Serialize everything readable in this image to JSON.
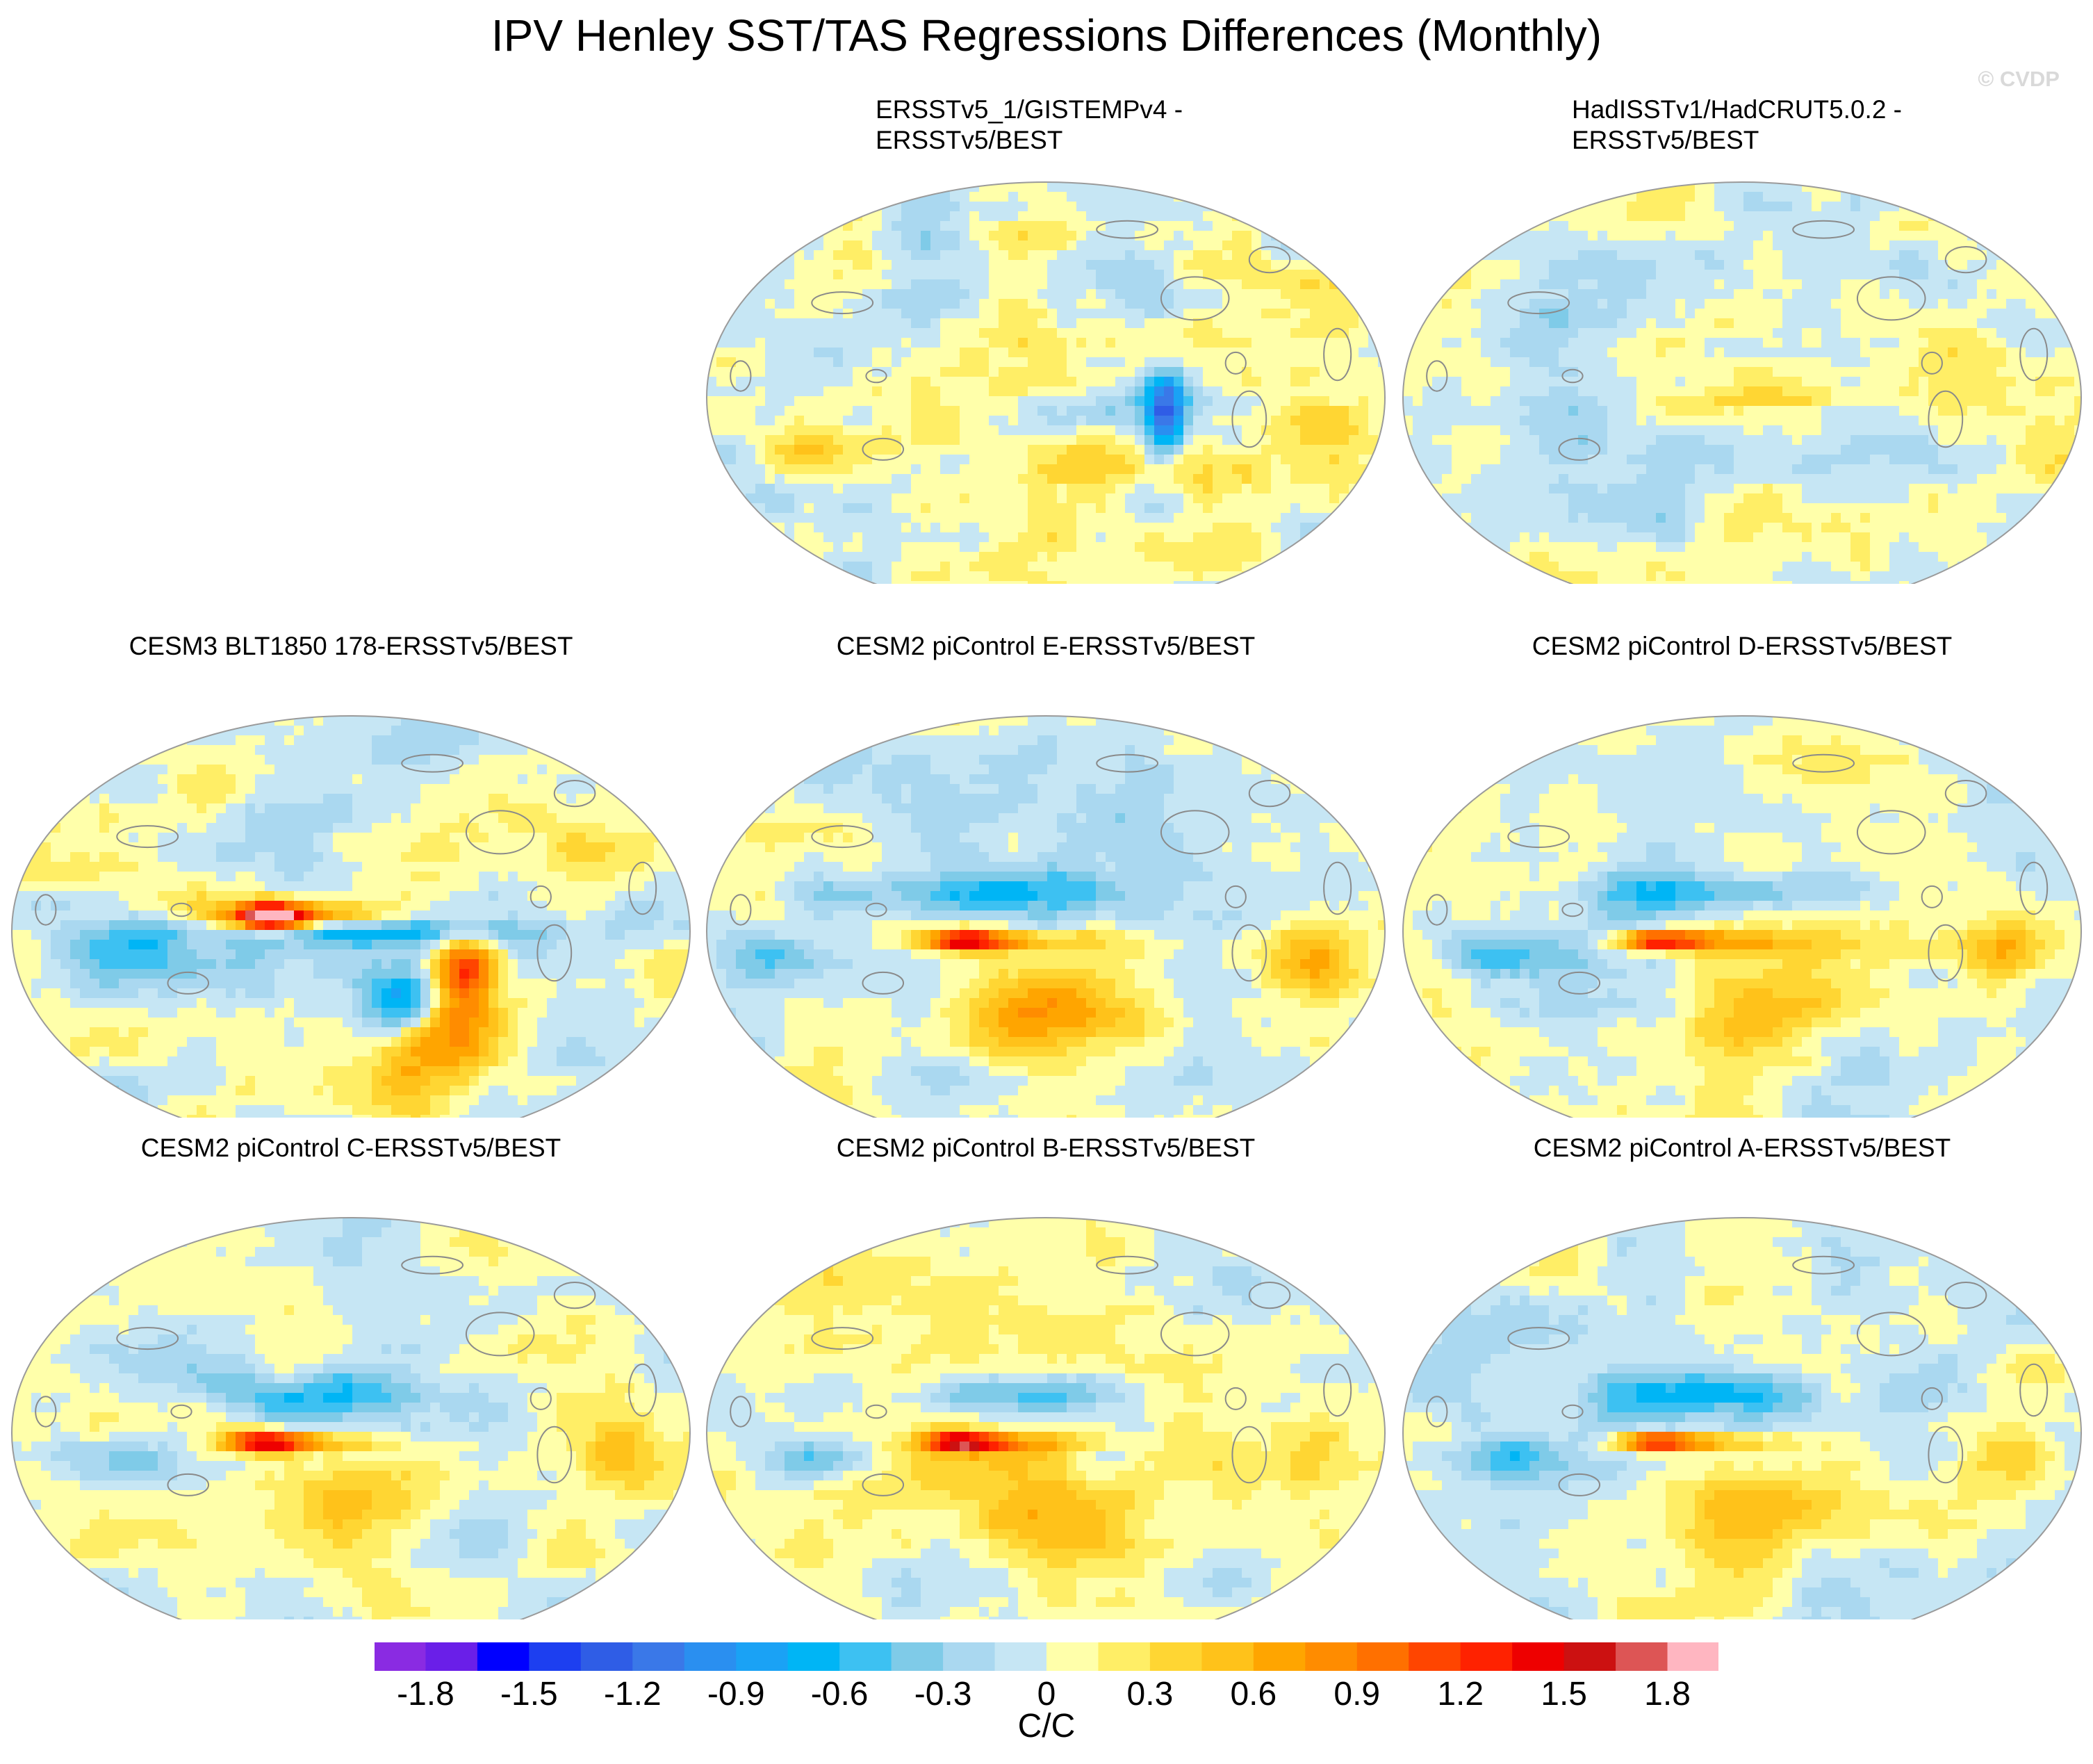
{
  "title": "IPV Henley SST/TAS Regressions Differences (Monthly)",
  "watermark": "© CVDP",
  "chart_data": {
    "type": "heatmap",
    "projection": "Robinson (global, Pacific-centered)",
    "colorbar": {
      "unit": "C/C",
      "tick_labels": [
        "-1.8",
        "-1.5",
        "-1.2",
        "-0.9",
        "-0.6",
        "-0.3",
        "0",
        "0.3",
        "0.6",
        "0.9",
        "1.2",
        "1.5",
        "1.8"
      ],
      "levels": [
        -1.8,
        -1.65,
        -1.5,
        -1.35,
        -1.2,
        -1.05,
        -0.9,
        -0.75,
        -0.6,
        -0.45,
        -0.3,
        -0.15,
        0,
        0.15,
        0.3,
        0.45,
        0.6,
        0.75,
        0.9,
        1.05,
        1.2,
        1.35,
        1.5,
        1.65,
        1.8
      ],
      "colors": [
        "#8a2be2",
        "#6a1fe8",
        "#0000ff",
        "#1d3ff0",
        "#2f5de6",
        "#3a78e8",
        "#2a8ff0",
        "#1aa2f5",
        "#00b5f5",
        "#3dc1f2",
        "#7fcbe8",
        "#aad8f0",
        "#c6e6f4",
        "#ffffaa",
        "#ffee66",
        "#ffd633",
        "#ffc21a",
        "#ffa500",
        "#ff8c00",
        "#ff7000",
        "#ff4500",
        "#ff2200",
        "#ee0000",
        "#cc1111",
        "#dd5555",
        "#ffb6c1"
      ]
    },
    "panels": [
      {
        "title_lines": [
          "ERSSTv5_1/GISTEMPv4 -",
          "ERSSTv5/BEST"
        ],
        "pattern": "obs1"
      },
      {
        "title_lines": [
          "HadISSTv1/HadCRUT5.0.2 -",
          "ERSSTv5/BEST"
        ],
        "pattern": "obs2"
      },
      {
        "title_lines": [
          "CESM3 BLT1850 178-ERSSTv5/BEST"
        ],
        "pattern": "cesm3"
      },
      {
        "title_lines": [
          "CESM2 piControl E-ERSSTv5/BEST"
        ],
        "pattern": "model"
      },
      {
        "title_lines": [
          "CESM2 piControl D-ERSSTv5/BEST"
        ],
        "pattern": "model"
      },
      {
        "title_lines": [
          "CESM2 piControl C-ERSSTv5/BEST"
        ],
        "pattern": "model"
      },
      {
        "title_lines": [
          "CESM2 piControl B-ERSSTv5/BEST"
        ],
        "pattern": "model"
      },
      {
        "title_lines": [
          "CESM2 piControl A-ERSSTv5/BEST"
        ],
        "pattern": "model"
      }
    ],
    "notable_features": {
      "cesm3": "strong positive anomaly ~1.8 in western equatorial Pacific; warm band ~0.9-1.2 along eastern South Pacific; cold ~-1.2 central South Pacific",
      "model": "positive ~1.2-1.5 in western equatorial Pacific; negative ~-0.6 bands north and south of equator",
      "obs1": "mostly within -0.6 to 0.6; cold ~-1.2 near eastern tropical Pacific coast",
      "obs2": "mostly within -0.45 to 0.45"
    }
  }
}
